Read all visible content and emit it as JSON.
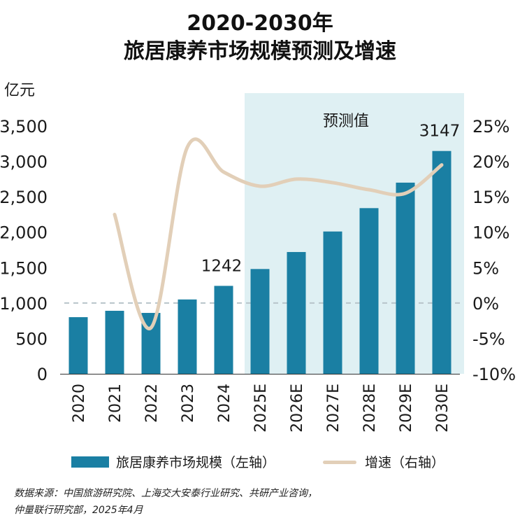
{
  "title_line1": "2020-2030年",
  "title_line2": "旅居康养市场规模预测及增速",
  "chart_data": {
    "type": "bar+line",
    "categories": [
      "2020",
      "2021",
      "2022",
      "2023",
      "2024",
      "2025E",
      "2026E",
      "2027E",
      "2028E",
      "2029E",
      "2030E"
    ],
    "series": [
      {
        "name": "旅居康养市场规模（左轴）",
        "type": "bar",
        "axis": "left",
        "values": [
          800,
          890,
          860,
          1050,
          1242,
          1480,
          1720,
          2010,
          2340,
          2700,
          3147
        ]
      },
      {
        "name": "增速（右轴）",
        "type": "line",
        "axis": "right",
        "values": [
          null,
          12.5,
          -3.5,
          22,
          18.5,
          16.5,
          17.5,
          17,
          16,
          15.5,
          19.5
        ]
      }
    ],
    "left_axis": {
      "label": "亿元",
      "ylim": [
        0,
        3500
      ],
      "ticks": [
        "0",
        "500",
        "1,000",
        "1,500",
        "2,000",
        "2,500",
        "3,000",
        "3,500"
      ]
    },
    "right_axis": {
      "ylim": [
        -10,
        25
      ],
      "ticks": [
        "-10%",
        "-5%",
        "0%",
        "5%",
        "10%",
        "15%",
        "20%",
        "25%"
      ]
    },
    "forecast_label": "预测值",
    "data_labels": [
      {
        "category": "2024",
        "text": "1242"
      },
      {
        "category": "2030E",
        "text": "3147"
      }
    ],
    "reference_line": "0%",
    "colors": {
      "bar": "#1a7fa3",
      "line": "#e2cfb8",
      "shade": "#dff0f3",
      "dash": "#b8c4ca"
    }
  },
  "legend": {
    "bar_label": "旅居康养市场规模（左轴）",
    "line_label": "增速（右轴）"
  },
  "source": {
    "line1": "数据来源：中国旅游研究院、上海交大安泰行业研究、共研产业咨询，",
    "line2": "仲量联行研究部，2025年4月"
  }
}
